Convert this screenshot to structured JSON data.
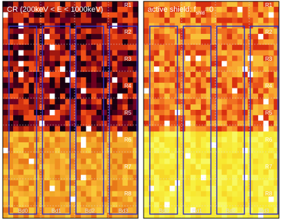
{
  "panels": [
    {
      "title": "CR (200keV < E < 1000keV)",
      "row_labels": [
        "R1",
        "R2",
        "R3",
        "R4",
        "R5",
        "R6",
        "R7",
        "R8"
      ],
      "board_labels": [
        "Bd0",
        "Bd1",
        "Bd2",
        "Bd3"
      ]
    },
    {
      "title": {
        "main": "active shield: f",
        "sub": "shld",
        "tail": "=0"
      },
      "row_labels": [
        "R1",
        "R2",
        "R3",
        "R4",
        "R5",
        "R6",
        "R7",
        "R8"
      ],
      "board_labels": [
        "Bd0",
        "Bd1",
        "Bd2",
        "Bd3"
      ]
    }
  ]
}
